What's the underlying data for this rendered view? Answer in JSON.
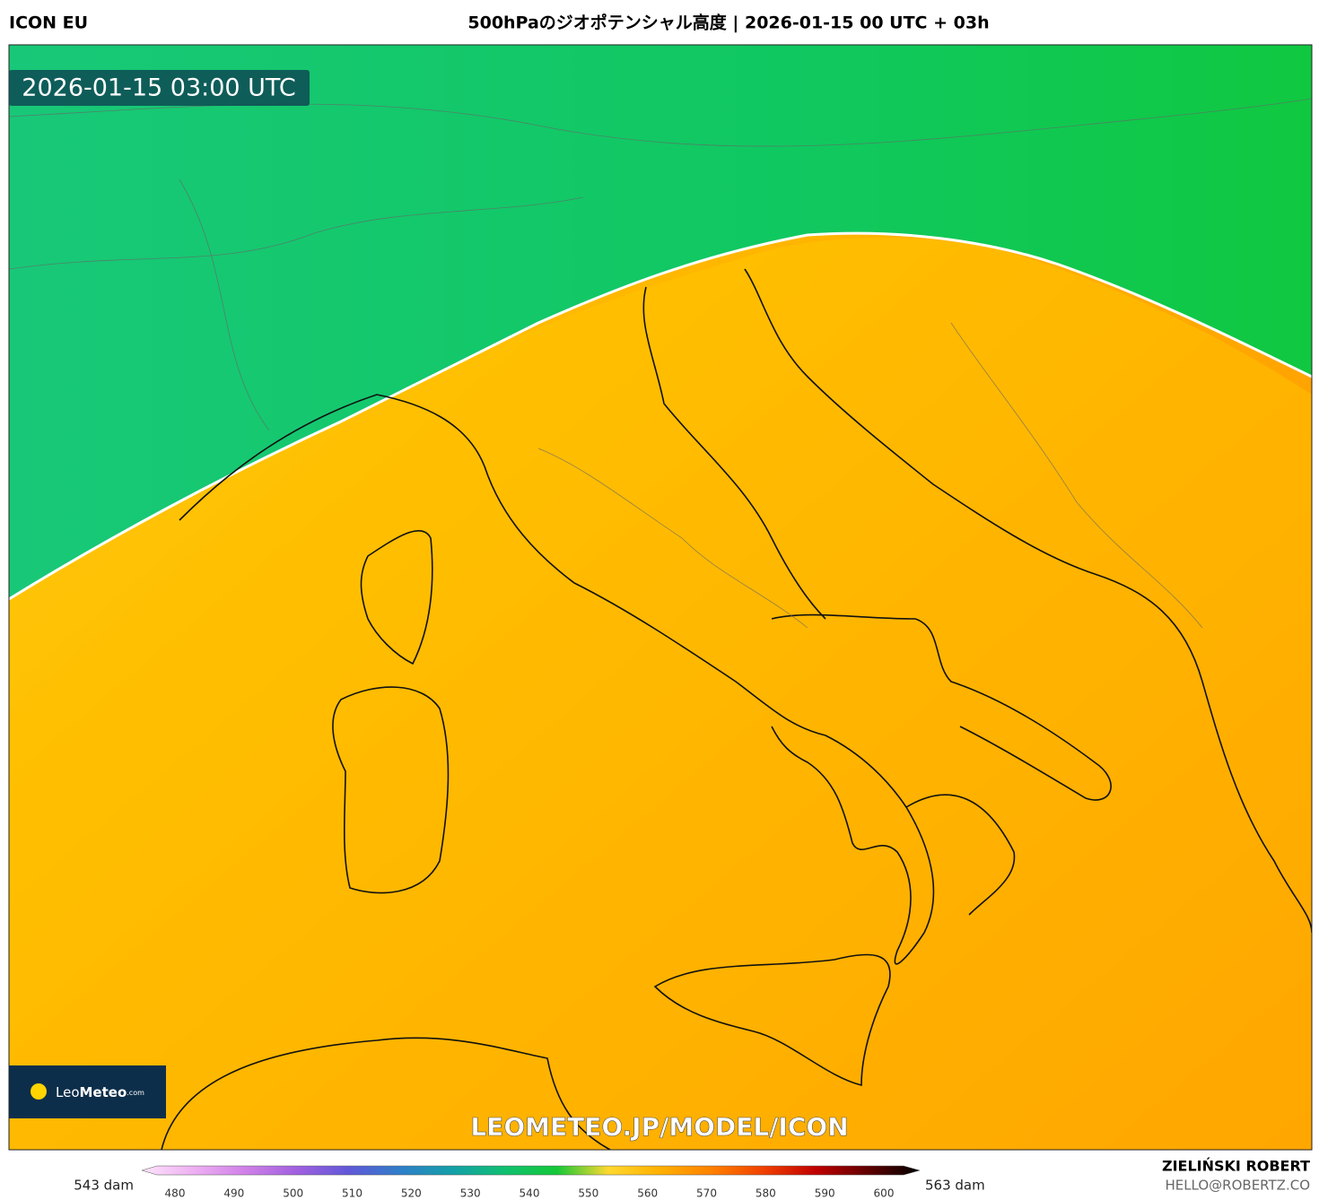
{
  "header": {
    "model": "ICON EU",
    "title": "500hPaのジオポテンシャル高度 | 2026-01-15 00 UTC + 03h"
  },
  "map": {
    "timestamp": "2026-01-15 03:00 UTC",
    "logo": {
      "name": "Leo",
      "brand": "Meteo",
      "suffix": ".com"
    },
    "watermark": "LEOMETEO.JP/MODEL/ICON"
  },
  "legend": {
    "min_label": "543 dam",
    "max_label": "563 dam",
    "ticks": [
      480,
      490,
      500,
      510,
      520,
      530,
      540,
      550,
      560,
      570,
      580,
      590,
      600
    ],
    "colors": [
      "#fde4fb",
      "#eeb0f2",
      "#d080e8",
      "#a060e0",
      "#6058d8",
      "#2f7fc8",
      "#14a0a8",
      "#10c070",
      "#14c838",
      "#ffd830",
      "#ffb000",
      "#ff8000",
      "#f04000",
      "#c00000",
      "#600000",
      "#000000"
    ]
  },
  "footer": {
    "author": "ZIELIŃSKI ROBERT",
    "email": "HELLO@ROBERTZ.CO"
  }
}
